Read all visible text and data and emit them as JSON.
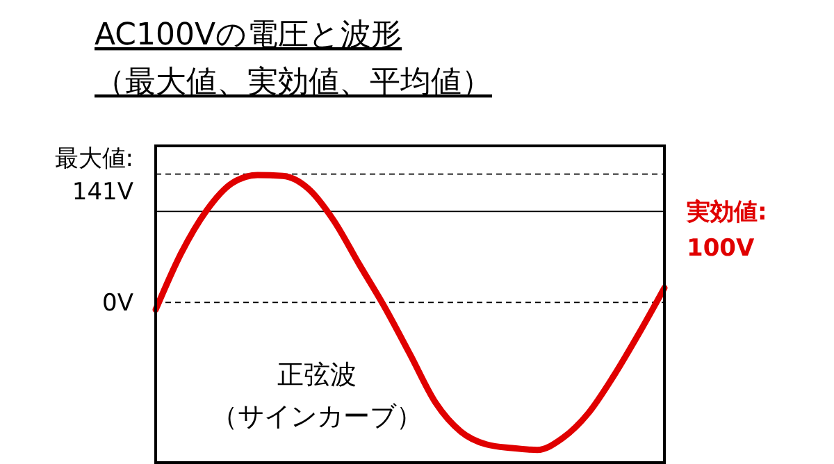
{
  "chart_data": {
    "type": "line",
    "title": "AC100Vの電圧と波形",
    "subtitle": "（最大値、実効値、平均値）",
    "categories": [
      null,
      null,
      null,
      null,
      null,
      null,
      null,
      null,
      null,
      null,
      null,
      null,
      null,
      null,
      null,
      null,
      null,
      null,
      null,
      null,
      null
    ],
    "series": [
      {
        "color": "#e00000",
        "values": [
          -8,
          54,
          101,
          131,
          140,
          139,
          125,
          90,
          42,
          -5,
          -57,
          -110,
          -142,
          -156,
          -160,
          -162,
          -149,
          -122,
          -81,
          -34,
          16
        ]
      }
    ],
    "ylim": [
      -176,
      172
    ],
    "yticks": [
      {
        "value": 141,
        "label": "最大値:\n141V"
      },
      {
        "value": 0,
        "label": "0V"
      }
    ],
    "tick_labels": "y",
    "grid": false,
    "marker": "none",
    "line_style": "solid",
    "ref_lines": [
      {
        "axis": "y",
        "value": 141,
        "line_style": "dashed",
        "color": "#000000"
      },
      {
        "axis": "y",
        "value": 100,
        "line_style": "solid",
        "color": "#000000",
        "label": "実効値:\n100V"
      },
      {
        "axis": "y",
        "value": 0,
        "line_style": "dashed",
        "color": "#000000"
      }
    ],
    "annotations": [
      "正弦波",
      "（サインカーブ）"
    ]
  }
}
